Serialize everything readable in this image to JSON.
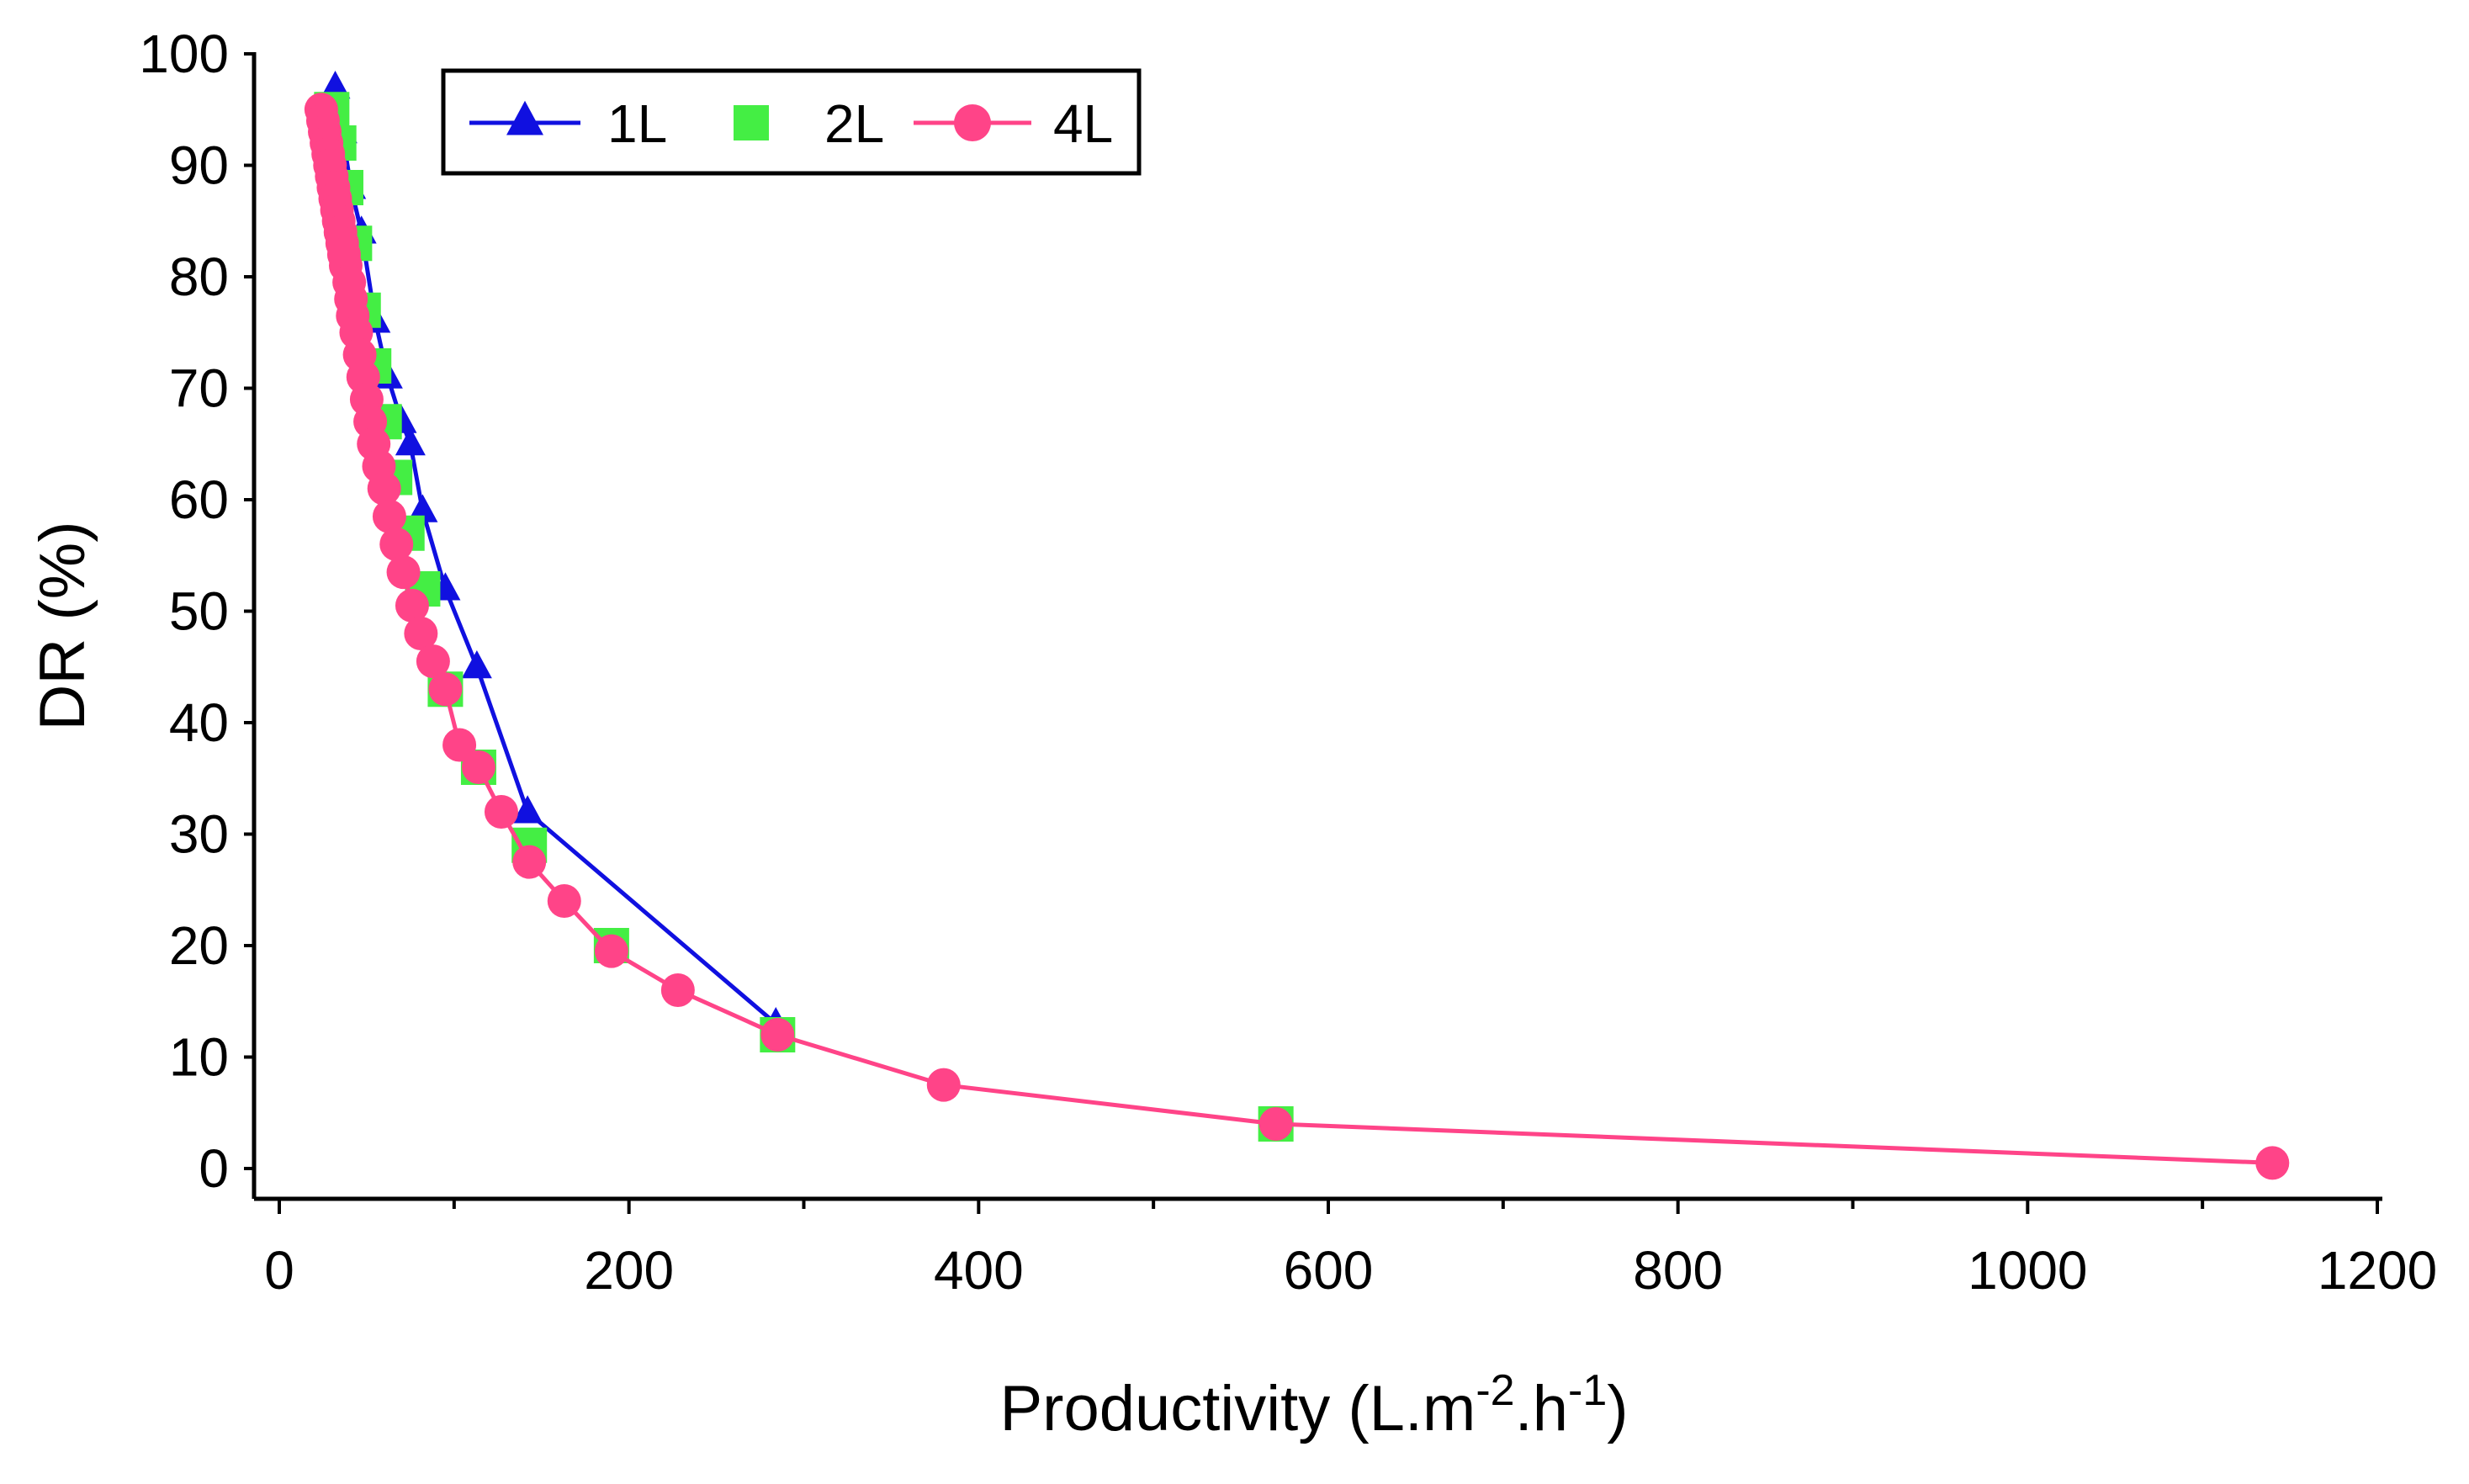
{
  "chart_data": {
    "type": "scatter",
    "title": "",
    "xlabel": "Productivity (L.m",
    "xlabel_sup1": "-2",
    "xlabel_mid": ".h",
    "xlabel_sup2": "-1",
    "xlabel_end": ")",
    "ylabel": "DR (%)",
    "xlim": [
      0,
      1200
    ],
    "ylim": [
      0,
      100
    ],
    "xticks": [
      0,
      200,
      400,
      600,
      800,
      1000,
      1200
    ],
    "yticks": [
      0,
      10,
      20,
      30,
      40,
      50,
      60,
      70,
      80,
      90,
      100
    ],
    "xtick_labels": [
      "0",
      "200",
      "400",
      "600",
      "800",
      "1000",
      "1200"
    ],
    "ytick_labels": [
      "0",
      "10",
      "20",
      "30",
      "40",
      "50",
      "60",
      "70",
      "80",
      "90",
      "100"
    ],
    "legend_position": "top-left",
    "series": [
      {
        "name": "1L",
        "color": "#1010e0",
        "marker": "triangle",
        "line": true,
        "x": [
          32,
          36,
          41,
          47,
          55,
          62,
          70,
          75,
          82,
          95,
          113,
          142,
          284
        ],
        "y": [
          97,
          93,
          88,
          84,
          76,
          71,
          67,
          65,
          59,
          52,
          45,
          32,
          13
        ]
      },
      {
        "name": "2L",
        "color": "#44ee44",
        "marker": "square",
        "line": false,
        "x": [
          30,
          34,
          38,
          43,
          48,
          54,
          60,
          66,
          73,
          82,
          95,
          114,
          143,
          190,
          285,
          570
        ],
        "y": [
          95,
          92,
          88,
          83,
          77,
          72,
          67,
          62,
          57,
          52,
          43,
          36,
          29,
          20,
          12,
          4
        ]
      },
      {
        "name": "4L",
        "color": "#ff4488",
        "marker": "circle",
        "line": true,
        "x": [
          24,
          25,
          26,
          27,
          28,
          29,
          30,
          31,
          32,
          33,
          34,
          35,
          36,
          37,
          38,
          40,
          41,
          42,
          44,
          46,
          48,
          50,
          52,
          54,
          57,
          60,
          63,
          67,
          71,
          76,
          81,
          88,
          95,
          103,
          114,
          127,
          143,
          163,
          190,
          228,
          285,
          380,
          570,
          1140
        ],
        "y": [
          95,
          94,
          93,
          92,
          91,
          90,
          89,
          88,
          87,
          86,
          85,
          84,
          83,
          82,
          81,
          79.5,
          78,
          76.5,
          75,
          73,
          71,
          69,
          67,
          65,
          63,
          61,
          58.5,
          56,
          53.5,
          50.5,
          48,
          45.5,
          43,
          38,
          36,
          32,
          27.5,
          24,
          19.5,
          16,
          12,
          7.5,
          4,
          0.5
        ]
      }
    ]
  }
}
